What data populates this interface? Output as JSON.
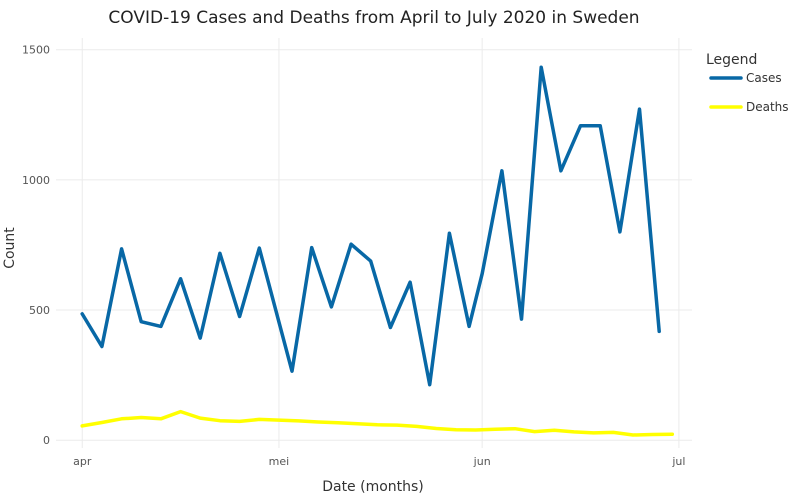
{
  "chart_data": {
    "type": "line",
    "title": "COVID-19 Cases and Deaths from April to July 2020 in Sweden",
    "xlabel": "Date (months)",
    "ylabel": "Count",
    "x_ticks": [
      {
        "date": "2020-04-01",
        "label": "apr"
      },
      {
        "date": "2020-05-01",
        "label": "mei"
      },
      {
        "date": "2020-06-01",
        "label": "jun"
      },
      {
        "date": "2020-07-01",
        "label": "jul"
      }
    ],
    "xlim": [
      "2020-03-28",
      "2020-07-03"
    ],
    "y_ticks": [
      0,
      500,
      1000,
      1500
    ],
    "ylim": [
      -30,
      1545
    ],
    "grid": true,
    "legend": {
      "title": "Legend",
      "position": "right"
    },
    "series": [
      {
        "name": "Cases",
        "color": "#0868a6",
        "points": [
          {
            "x": "2020-04-01",
            "y": 485
          },
          {
            "x": "2020-04-04",
            "y": 360
          },
          {
            "x": "2020-04-07",
            "y": 735
          },
          {
            "x": "2020-04-10",
            "y": 455
          },
          {
            "x": "2020-04-13",
            "y": 437
          },
          {
            "x": "2020-04-16",
            "y": 620
          },
          {
            "x": "2020-04-19",
            "y": 392
          },
          {
            "x": "2020-04-22",
            "y": 718
          },
          {
            "x": "2020-04-25",
            "y": 475
          },
          {
            "x": "2020-04-28",
            "y": 738
          },
          {
            "x": "2020-05-03",
            "y": 265
          },
          {
            "x": "2020-05-06",
            "y": 740
          },
          {
            "x": "2020-05-09",
            "y": 512
          },
          {
            "x": "2020-05-12",
            "y": 753
          },
          {
            "x": "2020-05-15",
            "y": 688
          },
          {
            "x": "2020-05-18",
            "y": 433
          },
          {
            "x": "2020-05-21",
            "y": 607
          },
          {
            "x": "2020-05-24",
            "y": 213
          },
          {
            "x": "2020-05-27",
            "y": 795
          },
          {
            "x": "2020-05-30",
            "y": 437
          },
          {
            "x": "2020-06-01",
            "y": 640
          },
          {
            "x": "2020-06-04",
            "y": 1035
          },
          {
            "x": "2020-06-07",
            "y": 465
          },
          {
            "x": "2020-06-10",
            "y": 1433
          },
          {
            "x": "2020-06-13",
            "y": 1035
          },
          {
            "x": "2020-06-16",
            "y": 1208
          },
          {
            "x": "2020-06-19",
            "y": 1208
          },
          {
            "x": "2020-06-22",
            "y": 800
          },
          {
            "x": "2020-06-25",
            "y": 1272
          },
          {
            "x": "2020-06-28",
            "y": 418
          }
        ]
      },
      {
        "name": "Deaths",
        "color": "#ffff00",
        "points": [
          {
            "x": "2020-04-01",
            "y": 55
          },
          {
            "x": "2020-04-04",
            "y": 68
          },
          {
            "x": "2020-04-07",
            "y": 82
          },
          {
            "x": "2020-04-10",
            "y": 87
          },
          {
            "x": "2020-04-13",
            "y": 82
          },
          {
            "x": "2020-04-16",
            "y": 110
          },
          {
            "x": "2020-04-19",
            "y": 85
          },
          {
            "x": "2020-04-22",
            "y": 75
          },
          {
            "x": "2020-04-25",
            "y": 72
          },
          {
            "x": "2020-04-28",
            "y": 80
          },
          {
            "x": "2020-05-01",
            "y": 77
          },
          {
            "x": "2020-05-04",
            "y": 74
          },
          {
            "x": "2020-05-07",
            "y": 70
          },
          {
            "x": "2020-05-10",
            "y": 67
          },
          {
            "x": "2020-05-13",
            "y": 63
          },
          {
            "x": "2020-05-16",
            "y": 59
          },
          {
            "x": "2020-05-19",
            "y": 58
          },
          {
            "x": "2020-05-22",
            "y": 53
          },
          {
            "x": "2020-05-25",
            "y": 45
          },
          {
            "x": "2020-05-28",
            "y": 40
          },
          {
            "x": "2020-05-31",
            "y": 39
          },
          {
            "x": "2020-06-03",
            "y": 42
          },
          {
            "x": "2020-06-06",
            "y": 44
          },
          {
            "x": "2020-06-09",
            "y": 33
          },
          {
            "x": "2020-06-12",
            "y": 38
          },
          {
            "x": "2020-06-15",
            "y": 32
          },
          {
            "x": "2020-06-18",
            "y": 28
          },
          {
            "x": "2020-06-21",
            "y": 30
          },
          {
            "x": "2020-06-24",
            "y": 20
          },
          {
            "x": "2020-06-27",
            "y": 22
          },
          {
            "x": "2020-06-30",
            "y": 23
          }
        ]
      }
    ]
  }
}
